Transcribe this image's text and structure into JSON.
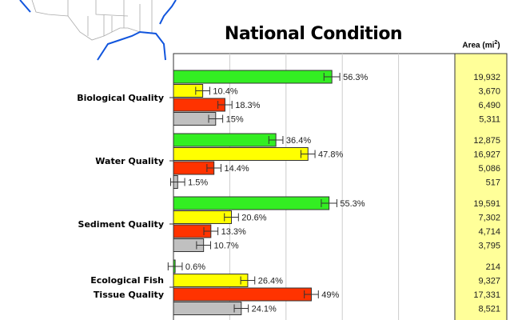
{
  "chart_data": {
    "type": "bar",
    "orientation": "horizontal",
    "title": "National Condition",
    "xlim": [
      0,
      100
    ],
    "grid": true,
    "table_header": "Area (mi",
    "table_header_sup": "2",
    "categories": [
      "Biological Quality",
      "Water Quality",
      "Sediment Quality",
      "Ecological Fish Tissue Quality"
    ],
    "category_lines": [
      [
        "Biological Quality"
      ],
      [
        "Water Quality"
      ],
      [
        "Sediment Quality"
      ],
      [
        "Ecological Fish",
        "Tissue Quality"
      ]
    ],
    "colors": [
      "#33ee22",
      "#ffff00",
      "#ff3300",
      "#c0c0c0"
    ],
    "groups": [
      {
        "values": [
          56.3,
          10.4,
          18.3,
          15
        ],
        "labels": [
          "56.3%",
          "10.4%",
          "18.3%",
          "15%"
        ],
        "areas": [
          "19,932",
          "3,670",
          "6,490",
          "5,311"
        ]
      },
      {
        "values": [
          36.4,
          47.8,
          14.4,
          1.5
        ],
        "labels": [
          "36.4%",
          "47.8%",
          "14.4%",
          "1.5%"
        ],
        "areas": [
          "12,875",
          "16,927",
          "5,086",
          "517"
        ]
      },
      {
        "values": [
          55.3,
          20.6,
          13.3,
          10.7
        ],
        "labels": [
          "55.3%",
          "20.6%",
          "13.3%",
          "10.7%"
        ],
        "areas": [
          "19,591",
          "7,302",
          "4,714",
          "3,795"
        ]
      },
      {
        "values": [
          0.6,
          26.4,
          49,
          24.1
        ],
        "labels": [
          "0.6%",
          "26.4%",
          "49%",
          "24.1%"
        ],
        "areas": [
          "214",
          "9,327",
          "17,331",
          "8,521"
        ]
      }
    ],
    "table_color": "#ffff99"
  }
}
